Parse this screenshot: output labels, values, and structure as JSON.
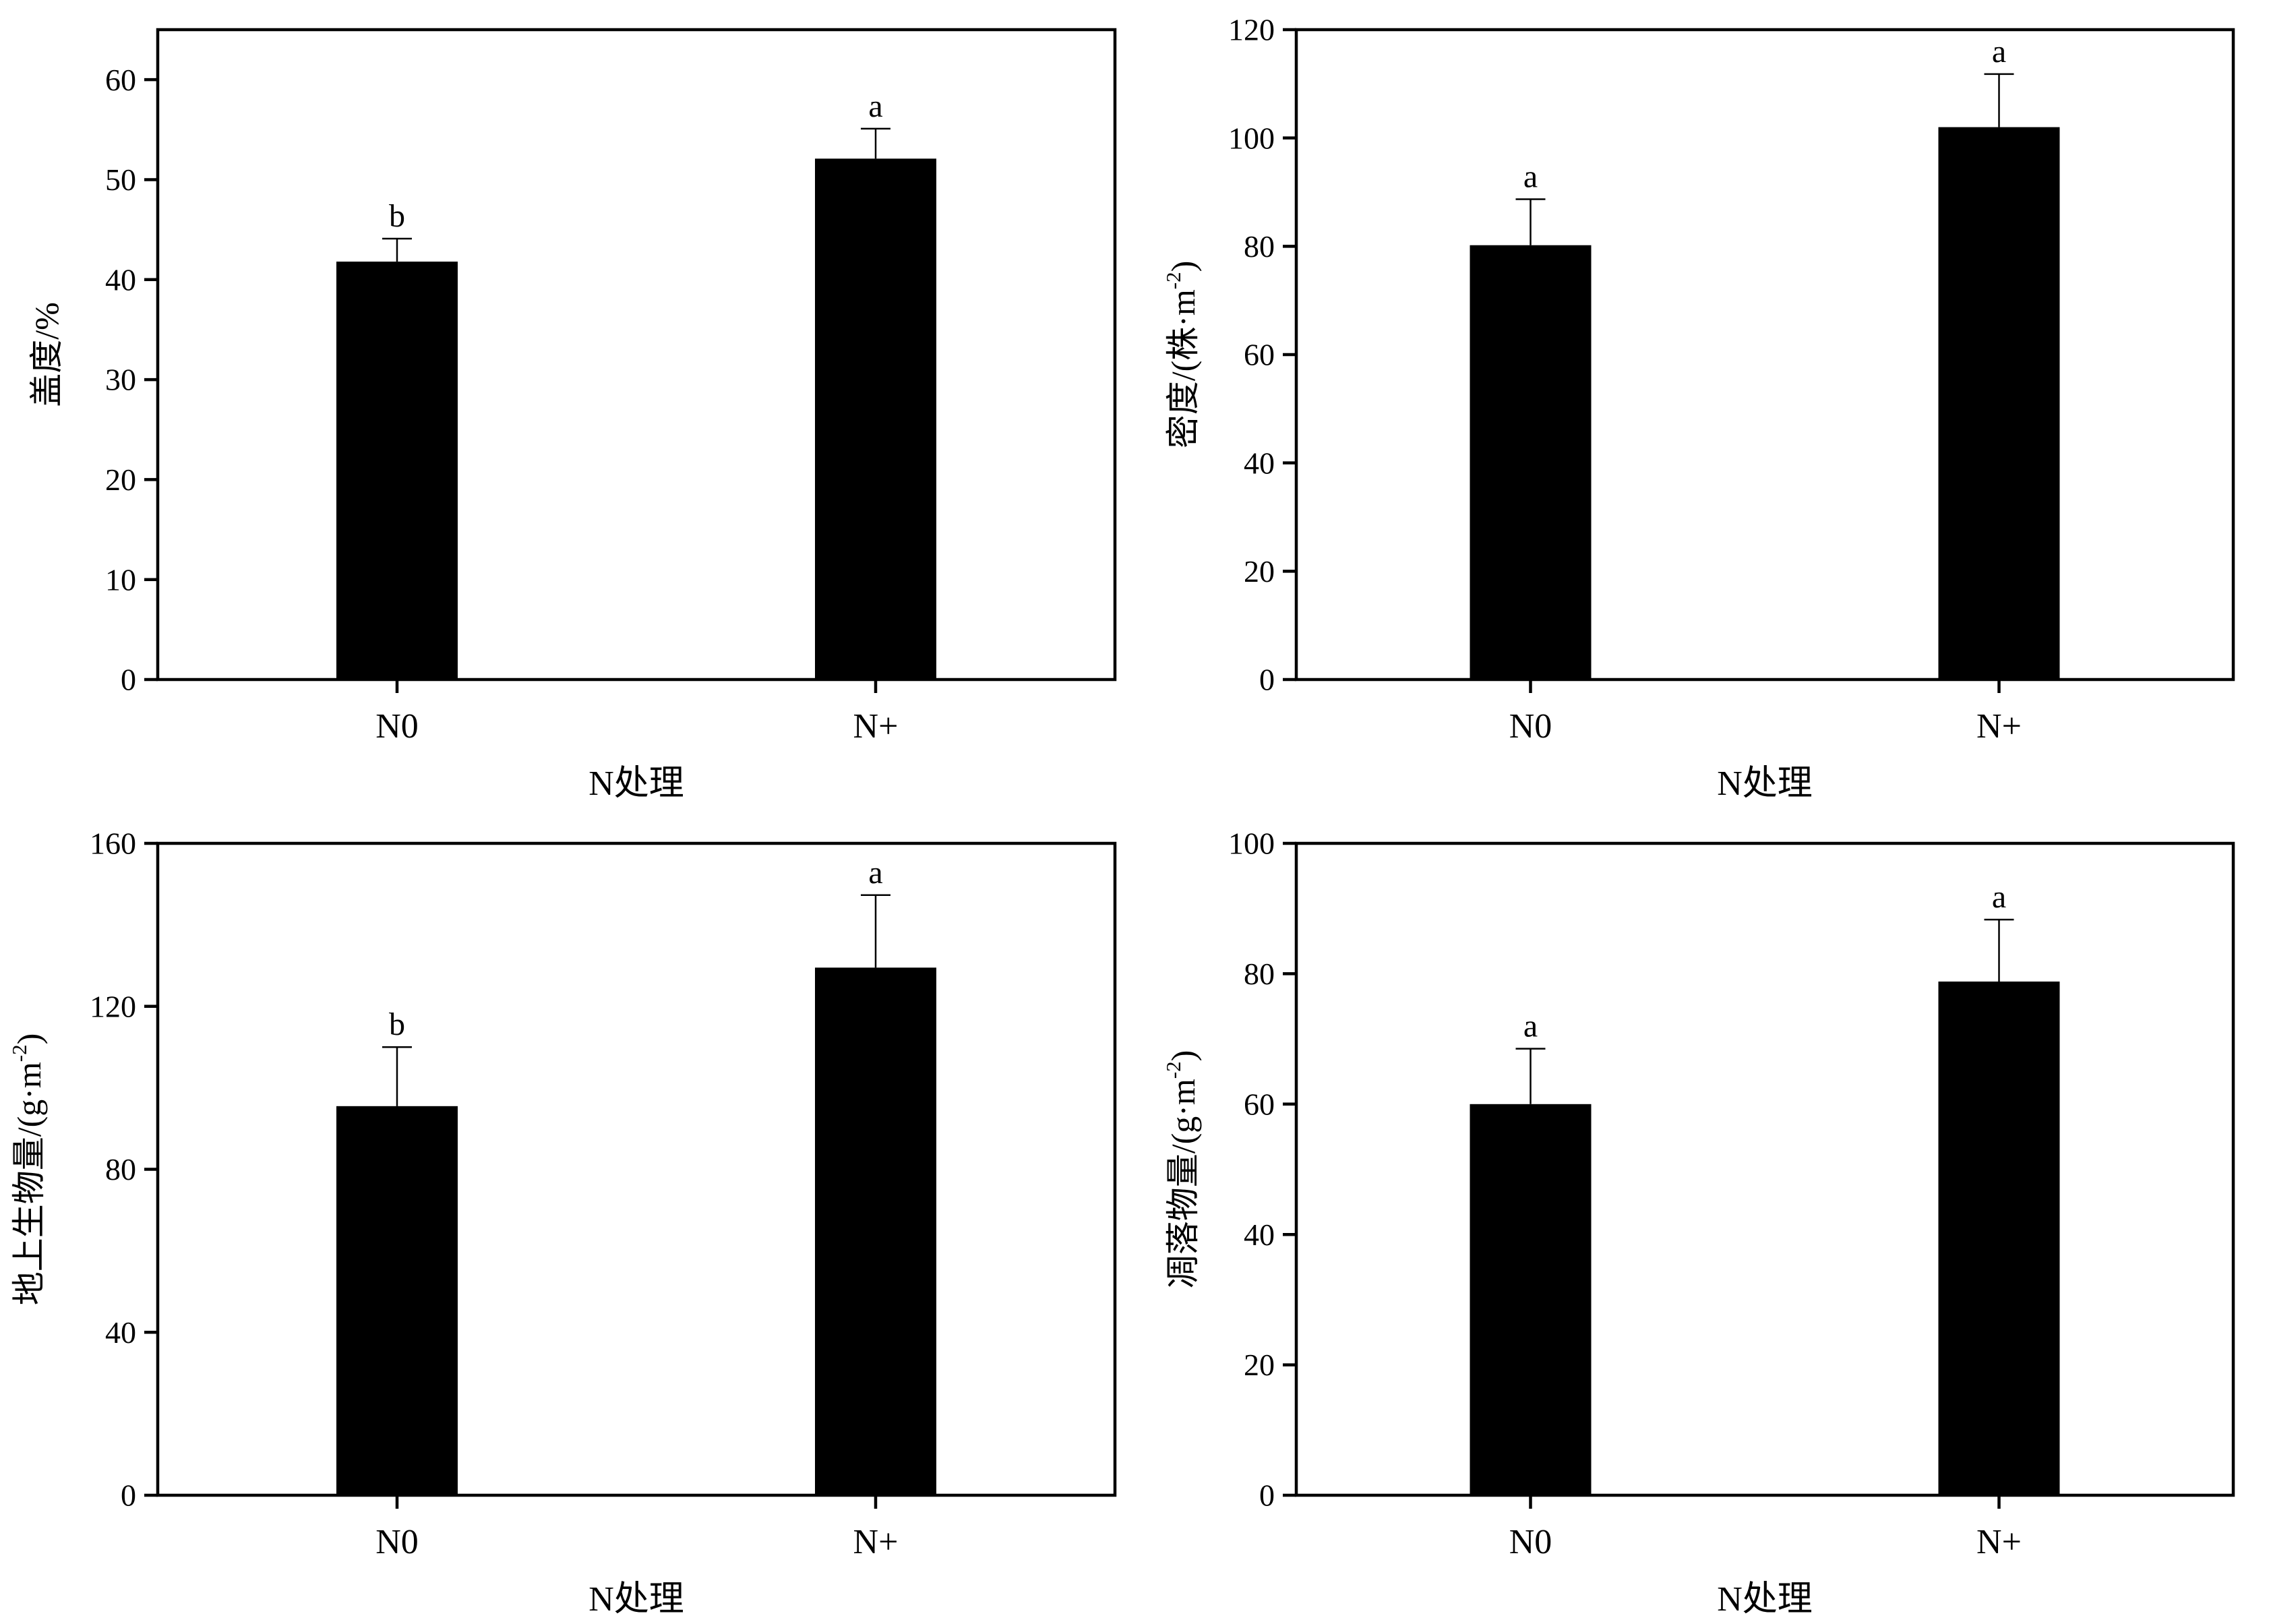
{
  "chart_data": [
    {
      "type": "bar",
      "categories": [
        "N0",
        "N+"
      ],
      "values": [
        41.8,
        52.1
      ],
      "errors": [
        2.3,
        3.0
      ],
      "significance_letters": [
        "b",
        "a"
      ],
      "xlabel": "N处理",
      "ylabel": "盖度/%",
      "ylabel_sup": "",
      "ylabel_close": "",
      "ylim": [
        0,
        65
      ],
      "yticks": [
        0,
        10,
        20,
        30,
        40,
        50,
        60
      ],
      "grid": false,
      "bar_color": "#000000"
    },
    {
      "type": "bar",
      "categories": [
        "N0",
        "N+"
      ],
      "values": [
        80.2,
        102.0
      ],
      "errors": [
        8.5,
        9.8
      ],
      "significance_letters": [
        "a",
        "a"
      ],
      "xlabel": "N处理",
      "ylabel": "密度/(株·m",
      "ylabel_sup": "-2",
      "ylabel_close": ")",
      "ylim": [
        0,
        120
      ],
      "yticks": [
        0,
        20,
        40,
        60,
        80,
        100,
        120
      ],
      "grid": false,
      "bar_color": "#000000"
    },
    {
      "type": "bar",
      "categories": [
        "N0",
        "N+"
      ],
      "values": [
        95.5,
        129.5
      ],
      "errors": [
        14.5,
        17.8
      ],
      "significance_letters": [
        "b",
        "a"
      ],
      "xlabel": "N处理",
      "ylabel": "地上生物量/(g·m",
      "ylabel_sup": "-2",
      "ylabel_close": ")",
      "ylim": [
        0,
        160
      ],
      "yticks": [
        0,
        40,
        80,
        120,
        160
      ],
      "grid": false,
      "bar_color": "#000000"
    },
    {
      "type": "bar",
      "categories": [
        "N0",
        "N+"
      ],
      "values": [
        60.0,
        78.8
      ],
      "errors": [
        8.5,
        9.5
      ],
      "significance_letters": [
        "a",
        "a"
      ],
      "xlabel": "N处理",
      "ylabel": "凋落物量/(g·m",
      "ylabel_sup": "-2",
      "ylabel_close": ")",
      "ylim": [
        0,
        100
      ],
      "yticks": [
        0,
        20,
        40,
        60,
        80,
        100
      ],
      "grid": false,
      "bar_color": "#000000"
    }
  ]
}
